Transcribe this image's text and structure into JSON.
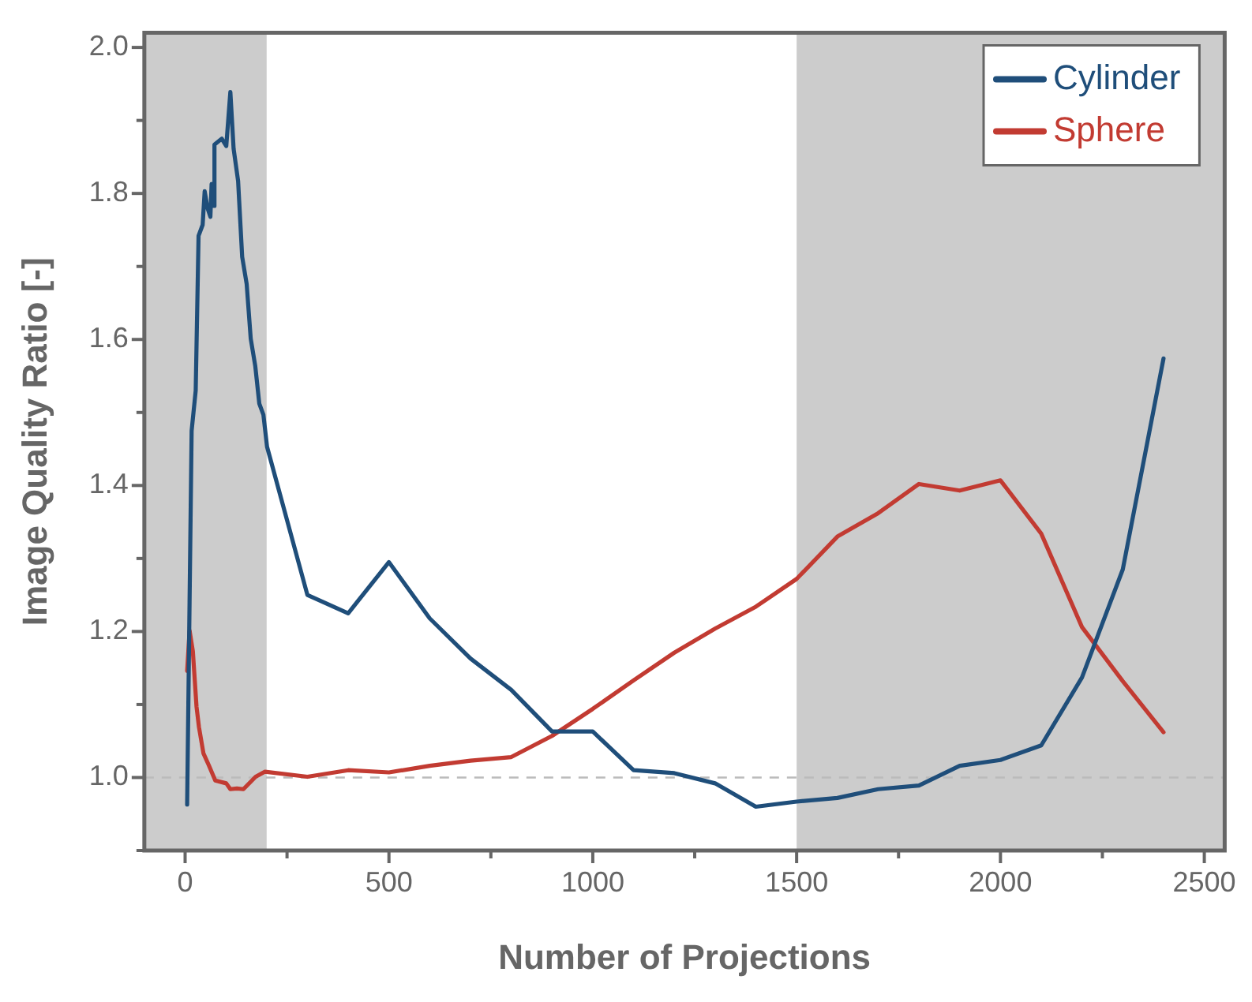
{
  "chart_data": {
    "type": "line",
    "xlabel": "Number of Projections",
    "ylabel": "Image Quality Ratio [-]",
    "xlim": [
      -100,
      2550
    ],
    "ylim": [
      0.9,
      2.02
    ],
    "xticks": [
      0,
      {
        "value": 250,
        "label": null
      },
      500,
      {
        "value": 750,
        "label": null
      },
      1000,
      {
        "value": 1250,
        "label": null
      },
      1500,
      {
        "value": 1750,
        "label": null
      },
      2000,
      {
        "value": 2250,
        "label": null
      },
      2500
    ],
    "yticks": [
      {
        "value": 0.9,
        "label": null
      },
      {
        "value": 1,
        "label": "1.0"
      },
      {
        "value": 1.1,
        "label": null
      },
      {
        "value": 1.2,
        "label": "1.2"
      },
      {
        "value": 1.3,
        "label": null
      },
      {
        "value": 1.4,
        "label": "1.4"
      },
      {
        "value": 1.5,
        "label": null
      },
      {
        "value": 1.6,
        "label": "1.6"
      },
      {
        "value": 1.7,
        "label": null
      },
      {
        "value": 1.8,
        "label": "1.8"
      },
      {
        "value": 1.9,
        "label": null
      },
      {
        "value": 2,
        "label": "2.0"
      }
    ],
    "grid": false,
    "legend": "top right",
    "marker": "none",
    "line_style": "solid",
    "bands": [
      {
        "axis": "x",
        "from": -100,
        "to": 200,
        "color": "#cccccc"
      },
      {
        "axis": "x",
        "from": 1500,
        "to": 2550,
        "color": "#cccccc"
      }
    ],
    "ref_lines": [
      {
        "axis": "y",
        "value": 1,
        "color": "#bbbbbb",
        "line_style": "dashed"
      }
    ],
    "series": [
      {
        "name": "Cylinder",
        "color": "#1f4e7a",
        "x": [
          5,
          16,
          26,
          33,
          43,
          48,
          55,
          62,
          65,
          69,
          72,
          90,
          101,
          111,
          119,
          130,
          140,
          151,
          161,
          172,
          182,
          192,
          201,
          300,
          400,
          500,
          600,
          700,
          800,
          900,
          1000,
          1100,
          1200,
          1300,
          1400,
          1500,
          1600,
          1700,
          1800,
          1900,
          2000,
          2100,
          2200,
          2300,
          2400
        ],
        "values": [
          0.963,
          1.475,
          1.53,
          1.742,
          1.757,
          1.803,
          1.78,
          1.768,
          1.813,
          1.783,
          1.867,
          1.875,
          1.865,
          1.939,
          1.861,
          1.817,
          1.713,
          1.676,
          1.601,
          1.564,
          1.512,
          1.497,
          1.453,
          1.25,
          1.225,
          1.295,
          1.218,
          1.163,
          1.12,
          1.063,
          1.063,
          1.01,
          1.006,
          0.992,
          0.96,
          0.967,
          0.972,
          0.984,
          0.989,
          1.016,
          1.024,
          1.044,
          1.137,
          1.285,
          1.574
        ]
      },
      {
        "name": "Sphere",
        "color": "#c23b32",
        "x": [
          5,
          11,
          19,
          28,
          34,
          45,
          58,
          74,
          101,
          111,
          127,
          143,
          173,
          196,
          300,
          400,
          500,
          600,
          700,
          800,
          900,
          1000,
          1100,
          1200,
          1300,
          1400,
          1500,
          1600,
          1700,
          1800,
          1900,
          2000,
          2100,
          2200,
          2300,
          2400
        ],
        "values": [
          1.146,
          1.201,
          1.173,
          1.097,
          1.069,
          1.033,
          1.017,
          0.996,
          0.992,
          0.984,
          0.985,
          0.984,
          1.001,
          1.008,
          1.001,
          1.01,
          1.007,
          1.016,
          1.023,
          1.028,
          1.057,
          1.094,
          1.133,
          1.171,
          1.204,
          1.234,
          1.272,
          1.33,
          1.362,
          1.402,
          1.393,
          1.407,
          1.334,
          1.206,
          1.132,
          1.062
        ]
      }
    ]
  }
}
